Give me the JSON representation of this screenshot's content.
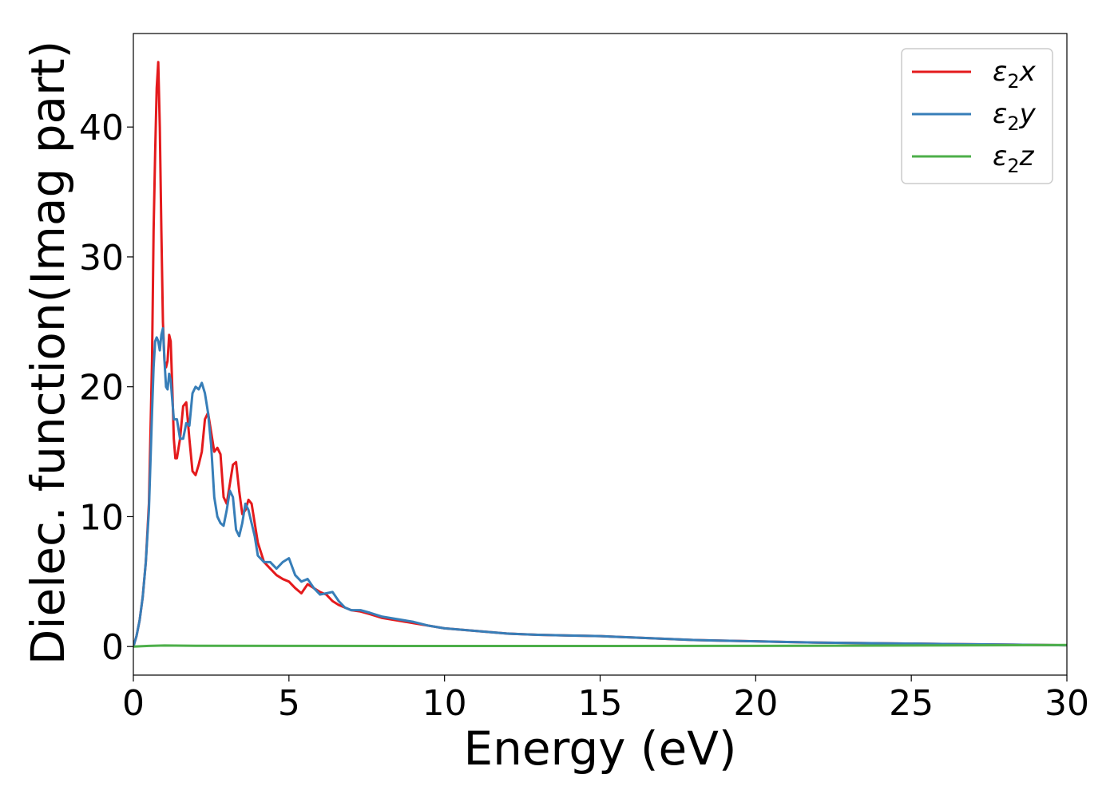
{
  "chart_data": {
    "type": "line",
    "xlabel": "Energy (eV)",
    "ylabel": "Dielec. function(Imag part)",
    "xlim": [
      0,
      30
    ],
    "ylim": [
      -2.2,
      47.2
    ],
    "x_ticks": [
      0,
      5,
      10,
      15,
      20,
      25,
      30
    ],
    "y_ticks": [
      0,
      10,
      20,
      30,
      40
    ],
    "grid": false,
    "legend_position": "top-right",
    "series": [
      {
        "name": "ε2x",
        "legend": {
          "base": "ε",
          "sub": "2",
          "suffix": "x"
        },
        "color": "#e41a1c",
        "x": [
          0,
          0.1,
          0.2,
          0.3,
          0.4,
          0.5,
          0.6,
          0.65,
          0.7,
          0.75,
          0.8,
          0.85,
          0.9,
          0.95,
          1.0,
          1.05,
          1.1,
          1.15,
          1.2,
          1.25,
          1.3,
          1.35,
          1.4,
          1.5,
          1.6,
          1.7,
          1.8,
          1.9,
          2.0,
          2.1,
          2.2,
          2.3,
          2.4,
          2.5,
          2.6,
          2.7,
          2.8,
          2.9,
          3.0,
          3.1,
          3.2,
          3.3,
          3.4,
          3.5,
          3.6,
          3.7,
          3.8,
          3.9,
          4.0,
          4.2,
          4.4,
          4.6,
          4.8,
          5.0,
          5.2,
          5.4,
          5.6,
          5.8,
          6.0,
          6.2,
          6.4,
          6.6,
          6.8,
          7.0,
          7.3,
          7.6,
          8.0,
          8.5,
          9.0,
          9.5,
          10.0,
          10.5,
          11.0,
          11.5,
          12.0,
          12.5,
          13.0,
          14.0,
          15.0,
          16.0,
          17.0,
          18.0,
          19.0,
          20.0,
          21.0,
          22.0,
          24.0,
          26.0,
          28.0,
          30.0
        ],
        "y": [
          0,
          0.8,
          2.0,
          3.8,
          6.5,
          11.0,
          22.0,
          32.0,
          38.0,
          43.0,
          45.0,
          40.0,
          32.0,
          25.0,
          22.0,
          21.5,
          22.0,
          24.0,
          23.5,
          20.0,
          16.0,
          14.5,
          14.5,
          16.0,
          18.5,
          18.8,
          16.0,
          13.5,
          13.2,
          14.0,
          15.0,
          17.5,
          18.0,
          16.5,
          15.0,
          15.3,
          14.8,
          11.5,
          11.0,
          12.5,
          14.0,
          14.2,
          12.0,
          10.2,
          10.5,
          11.3,
          11.0,
          9.5,
          8.0,
          6.5,
          6.0,
          5.5,
          5.2,
          5.0,
          4.5,
          4.1,
          4.8,
          4.5,
          4.2,
          4.0,
          3.5,
          3.2,
          3.0,
          2.8,
          2.7,
          2.5,
          2.2,
          2.0,
          1.8,
          1.6,
          1.4,
          1.3,
          1.2,
          1.1,
          1.0,
          0.95,
          0.9,
          0.85,
          0.8,
          0.7,
          0.6,
          0.5,
          0.45,
          0.4,
          0.35,
          0.3,
          0.25,
          0.2,
          0.15,
          0.1
        ]
      },
      {
        "name": "ε2y",
        "legend": {
          "base": "ε",
          "sub": "2",
          "suffix": "y"
        },
        "color": "#377eb8",
        "x": [
          0,
          0.1,
          0.2,
          0.3,
          0.4,
          0.5,
          0.6,
          0.65,
          0.7,
          0.75,
          0.8,
          0.85,
          0.9,
          0.95,
          1.0,
          1.05,
          1.1,
          1.15,
          1.2,
          1.25,
          1.3,
          1.35,
          1.4,
          1.5,
          1.6,
          1.7,
          1.8,
          1.9,
          2.0,
          2.1,
          2.2,
          2.3,
          2.4,
          2.5,
          2.6,
          2.7,
          2.8,
          2.9,
          3.0,
          3.1,
          3.2,
          3.3,
          3.4,
          3.5,
          3.6,
          3.7,
          3.8,
          3.9,
          4.0,
          4.2,
          4.4,
          4.6,
          4.8,
          5.0,
          5.2,
          5.4,
          5.6,
          5.8,
          6.0,
          6.2,
          6.4,
          6.6,
          6.8,
          7.0,
          7.3,
          7.6,
          8.0,
          8.5,
          9.0,
          9.5,
          10.0,
          10.5,
          11.0,
          11.5,
          12.0,
          12.5,
          13.0,
          14.0,
          15.0,
          16.0,
          17.0,
          18.0,
          19.0,
          20.0,
          21.0,
          22.0,
          24.0,
          26.0,
          28.0,
          30.0
        ],
        "y": [
          0,
          0.8,
          2.0,
          3.8,
          6.5,
          10.5,
          18.0,
          21.5,
          23.5,
          23.8,
          23.5,
          22.8,
          24.0,
          24.5,
          22.0,
          20.0,
          19.8,
          21.0,
          20.5,
          19.0,
          17.5,
          17.5,
          17.5,
          16.0,
          16.0,
          17.2,
          17.0,
          19.5,
          20.0,
          19.8,
          20.3,
          19.5,
          18.0,
          15.5,
          11.5,
          10.0,
          9.5,
          9.3,
          10.5,
          12.0,
          11.5,
          9.0,
          8.5,
          9.5,
          11.0,
          10.5,
          9.5,
          8.5,
          7.0,
          6.5,
          6.5,
          6.0,
          6.5,
          6.8,
          5.5,
          5.0,
          5.2,
          4.5,
          4.0,
          4.1,
          4.2,
          3.5,
          3.0,
          2.8,
          2.8,
          2.6,
          2.3,
          2.1,
          1.9,
          1.6,
          1.4,
          1.3,
          1.2,
          1.1,
          1.0,
          0.95,
          0.9,
          0.85,
          0.8,
          0.7,
          0.6,
          0.5,
          0.45,
          0.4,
          0.35,
          0.3,
          0.25,
          0.2,
          0.15,
          0.1
        ]
      },
      {
        "name": "ε2z",
        "legend": {
          "base": "ε",
          "sub": "2",
          "suffix": "z"
        },
        "color": "#4daf4a",
        "x": [
          0,
          0.5,
          1.0,
          2.0,
          5.0,
          10.0,
          15.0,
          20.0,
          25.0,
          30.0
        ],
        "y": [
          0,
          0.05,
          0.08,
          0.06,
          0.05,
          0.04,
          0.04,
          0.05,
          0.08,
          0.12
        ]
      }
    ]
  }
}
